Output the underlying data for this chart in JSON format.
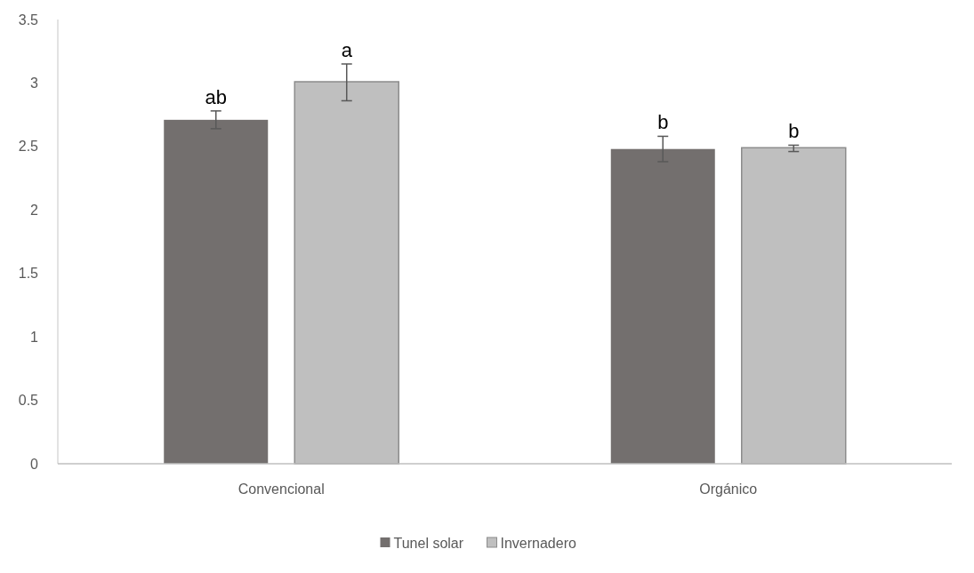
{
  "chart_data": {
    "type": "bar",
    "categories": [
      "Convencional",
      "Orgánico"
    ],
    "series": [
      {
        "name": "Tunel solar",
        "color": "#736f6e",
        "values": [
          2.71,
          2.48
        ],
        "errors": [
          [
            2.64,
            2.78
          ],
          [
            2.38,
            2.58
          ]
        ],
        "value_labels": [
          "ab",
          "b"
        ]
      },
      {
        "name": "Invernadero",
        "color": "#bfbfbf",
        "values": [
          3.01,
          2.49
        ],
        "errors": [
          [
            2.86,
            3.15
          ],
          [
            2.46,
            2.51
          ]
        ],
        "value_labels": [
          "a",
          "b"
        ]
      }
    ],
    "ylim": [
      0,
      3.5
    ],
    "yticks": [
      0,
      0.5,
      1,
      1.5,
      2,
      2.5,
      3,
      3.5
    ],
    "grid": false,
    "legend": "bottom"
  }
}
